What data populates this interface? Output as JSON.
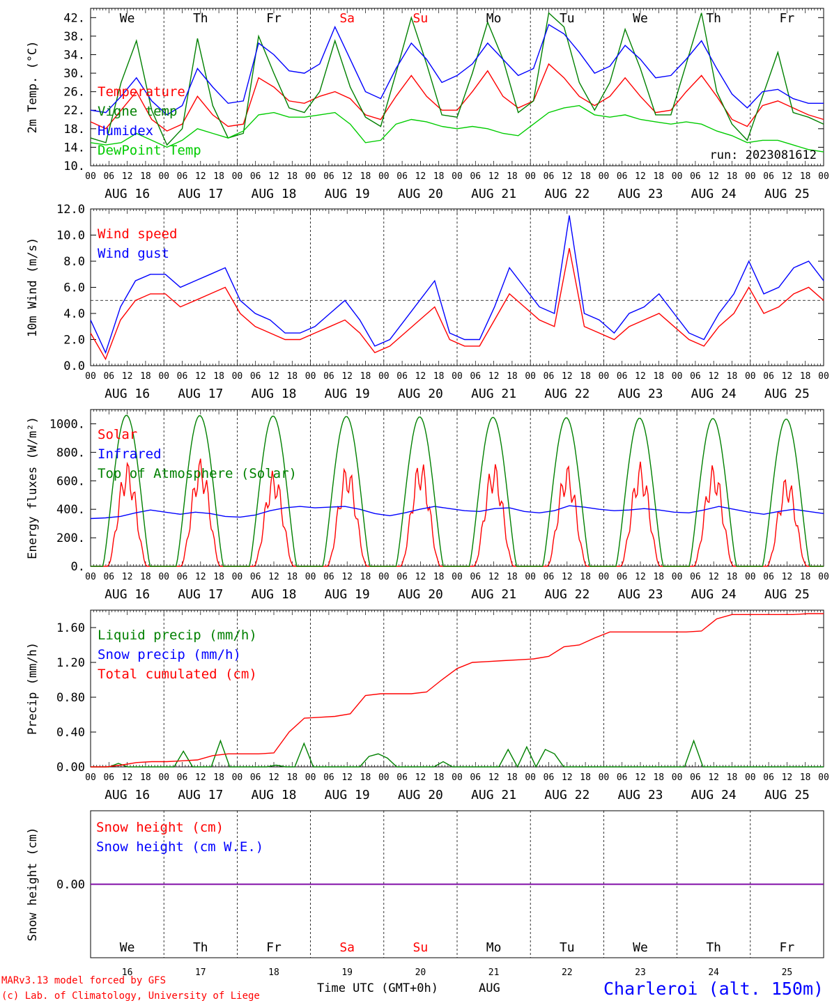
{
  "colors": {
    "red": "#ff0000",
    "green": "#008000",
    "blue": "#0000ff",
    "lime": "#00cc00",
    "purple": "#8000a0",
    "black": "#000000"
  },
  "x_axis": {
    "hour_labels": [
      "00",
      "06",
      "12",
      "18"
    ],
    "date_labels": [
      "AUG 16",
      "AUG 17",
      "AUG 18",
      "AUG 19",
      "AUG 20",
      "AUG 21",
      "AUG 22",
      "AUG 23",
      "AUG 24",
      "AUG 25"
    ],
    "weekdays": [
      {
        "label": "We",
        "weekend": false
      },
      {
        "label": "Th",
        "weekend": false
      },
      {
        "label": "Fr",
        "weekend": false
      },
      {
        "label": "Sa",
        "weekend": true
      },
      {
        "label": "Su",
        "weekend": true
      },
      {
        "label": "Mo",
        "weekend": false
      },
      {
        "label": "Tu",
        "weekend": false
      },
      {
        "label": "We",
        "weekend": false
      },
      {
        "label": "Th",
        "weekend": false
      },
      {
        "label": "Fr",
        "weekend": false
      }
    ],
    "day_numbers": [
      "16",
      "17",
      "18",
      "19",
      "20",
      "21",
      "22",
      "23",
      "24",
      "25"
    ],
    "title": "Time UTC (GMT+0h)",
    "month": "AUG"
  },
  "footer": {
    "model": "MARv3.13 model forced by GFS",
    "copyright": "(c) Lab. of Climatology, University of Liege",
    "station": "Charleroi (alt. 150m)"
  },
  "chart_data": [
    {
      "type": "line",
      "ylabel": "2m Temp. (°C)",
      "ylim": [
        10,
        44
      ],
      "yticks": [
        "42.",
        "38.",
        "34.",
        "30.",
        "26.",
        "22.",
        "18.",
        "14.",
        "10."
      ],
      "ytick_values": [
        42,
        38,
        34,
        30,
        26,
        22,
        18,
        14,
        10
      ],
      "annotation": "run: 2023081612",
      "series": [
        {
          "name": "Temperature",
          "color": "red",
          "values": [
            19.5,
            18.0,
            22.0,
            26.0,
            20.0,
            17.5,
            19.0,
            25.0,
            21.0,
            18.5,
            19.0,
            29.0,
            27.0,
            24.0,
            23.5,
            25.0,
            26.0,
            24.5,
            21.0,
            20.0,
            25.0,
            29.5,
            25.0,
            22.0,
            22.0,
            26.0,
            30.5,
            25.0,
            22.5,
            24.0,
            32.0,
            29.0,
            25.0,
            23.0,
            25.0,
            29.0,
            25.0,
            21.5,
            22.0,
            26.0,
            29.5,
            25.0,
            20.0,
            18.5,
            23.0,
            24.0,
            22.5,
            21.0,
            20.0
          ]
        },
        {
          "name": "Vigne temp",
          "color": "green",
          "values": [
            16.0,
            15.0,
            28.0,
            37.0,
            22.0,
            14.5,
            18.0,
            37.5,
            23.0,
            16.0,
            17.0,
            38.0,
            30.0,
            22.5,
            21.5,
            26.0,
            37.0,
            27.0,
            20.5,
            18.5,
            30.0,
            42.0,
            32.0,
            21.0,
            20.5,
            30.0,
            41.0,
            33.0,
            21.5,
            24.0,
            43.0,
            40.0,
            28.0,
            22.0,
            28.0,
            39.5,
            31.0,
            21.0,
            21.0,
            32.0,
            43.0,
            26.0,
            19.0,
            15.5,
            25.0,
            34.5,
            21.5,
            20.5,
            19.0
          ]
        },
        {
          "name": "Humidex",
          "color": "blue",
          "values": [
            22.0,
            21.5,
            25.0,
            29.0,
            24.0,
            21.0,
            23.0,
            31.0,
            27.0,
            23.5,
            24.0,
            36.5,
            34.0,
            30.5,
            30.0,
            32.0,
            40.0,
            33.0,
            26.0,
            24.5,
            31.0,
            36.5,
            33.0,
            28.0,
            29.5,
            32.0,
            36.5,
            33.0,
            29.5,
            31.0,
            40.5,
            38.5,
            34.5,
            30.0,
            31.5,
            36.0,
            33.0,
            29.0,
            29.5,
            33.0,
            37.0,
            31.0,
            25.5,
            22.5,
            26.0,
            26.5,
            24.5,
            23.5,
            23.5
          ]
        },
        {
          "name": "DewPoint Temp",
          "color": "lime",
          "values": [
            15.0,
            14.5,
            15.0,
            17.0,
            15.5,
            14.0,
            15.5,
            18.0,
            17.0,
            16.0,
            17.5,
            21.0,
            21.5,
            20.5,
            20.5,
            21.0,
            21.5,
            19.0,
            15.0,
            15.5,
            19.0,
            20.0,
            19.5,
            18.5,
            18.0,
            18.5,
            18.0,
            17.0,
            16.5,
            19.0,
            21.5,
            22.5,
            23.0,
            21.0,
            20.5,
            21.0,
            20.0,
            19.5,
            19.0,
            19.5,
            19.0,
            17.5,
            16.5,
            15.0,
            15.5,
            15.5,
            14.5,
            13.5,
            13.0
          ]
        }
      ]
    },
    {
      "type": "line",
      "ylabel": "10m Wind (m/s)",
      "ylim": [
        0,
        12
      ],
      "yticks": [
        "12.0",
        "10.0",
        "8.0",
        "6.0",
        "4.0",
        "2.0",
        "0.0"
      ],
      "ytick_values": [
        12,
        10,
        8,
        6,
        4,
        2,
        0
      ],
      "reference_line": 5,
      "series": [
        {
          "name": "Wind speed",
          "color": "red",
          "values": [
            2.5,
            0.5,
            3.5,
            5.0,
            5.5,
            5.5,
            4.5,
            5.0,
            5.5,
            6.0,
            4.0,
            3.0,
            2.5,
            2.0,
            2.0,
            2.5,
            3.0,
            3.5,
            2.5,
            1.0,
            1.5,
            2.5,
            3.5,
            4.5,
            2.0,
            1.5,
            1.5,
            3.5,
            5.5,
            4.5,
            3.5,
            3.0,
            9.0,
            3.0,
            2.5,
            2.0,
            3.0,
            3.5,
            4.0,
            3.0,
            2.0,
            1.5,
            3.0,
            4.0,
            6.0,
            4.0,
            4.5,
            5.5,
            6.0,
            5.0
          ]
        },
        {
          "name": "Wind gust",
          "color": "blue",
          "values": [
            3.5,
            1.0,
            4.5,
            6.5,
            7.0,
            7.0,
            6.0,
            6.5,
            7.0,
            7.5,
            5.0,
            4.0,
            3.5,
            2.5,
            2.5,
            3.0,
            4.0,
            5.0,
            3.5,
            1.5,
            2.0,
            3.5,
            5.0,
            6.5,
            2.5,
            2.0,
            2.0,
            4.5,
            7.5,
            6.0,
            4.5,
            4.0,
            11.5,
            4.0,
            3.5,
            2.5,
            4.0,
            4.5,
            5.5,
            4.0,
            2.5,
            2.0,
            4.0,
            5.5,
            8.0,
            5.5,
            6.0,
            7.5,
            8.0,
            6.5
          ]
        }
      ]
    },
    {
      "type": "line",
      "ylabel": "Energy fluxes (W/m²)",
      "ylim": [
        0,
        1100
      ],
      "yticks": [
        "1000.",
        "800.",
        "600.",
        "400.",
        "200.",
        "0."
      ],
      "ytick_values": [
        1000,
        800,
        600,
        400,
        200,
        0
      ],
      "series": [
        {
          "name": "Solar",
          "color": "red",
          "day_peaks": [
            740,
            765,
            680,
            720,
            755,
            740,
            720,
            735,
            720,
            640
          ]
        },
        {
          "name": "Infrared",
          "color": "blue",
          "values": [
            335,
            340,
            350,
            375,
            395,
            380,
            365,
            380,
            370,
            350,
            345,
            360,
            390,
            410,
            420,
            410,
            415,
            420,
            400,
            370,
            355,
            375,
            400,
            420,
            405,
            390,
            385,
            405,
            410,
            385,
            375,
            390,
            425,
            415,
            400,
            390,
            395,
            405,
            395,
            380,
            375,
            395,
            420,
            400,
            380,
            365,
            385,
            400,
            385,
            370
          ]
        },
        {
          "name": "Top of Atmosphere (Solar)",
          "color": "green",
          "day_peaks": [
            1060,
            1058,
            1055,
            1052,
            1049,
            1046,
            1043,
            1040,
            1037,
            1034
          ]
        }
      ]
    },
    {
      "type": "line",
      "ylabel": "Precip (mm/h)",
      "ylim": [
        0,
        1.8
      ],
      "yticks": [
        "1.60",
        "1.20",
        "0.80",
        "0.40",
        "0.00"
      ],
      "ytick_values": [
        1.6,
        1.2,
        0.8,
        0.4,
        0
      ],
      "series": [
        {
          "name": "Liquid precip (mm/h)",
          "color": "green",
          "values": [
            0,
            0,
            0,
            0.04,
            0,
            0,
            0,
            0,
            0,
            0,
            0.18,
            0,
            0,
            0,
            0.3,
            0,
            0,
            0,
            0,
            0,
            0.02,
            0,
            0,
            0.27,
            0,
            0,
            0,
            0,
            0,
            0,
            0.12,
            0.15,
            0.1,
            0,
            0,
            0,
            0,
            0,
            0.06,
            0,
            0,
            0,
            0,
            0,
            0,
            0.2,
            0,
            0.23,
            0,
            0.2,
            0.15,
            0,
            0,
            0,
            0,
            0,
            0,
            0,
            0,
            0,
            0,
            0,
            0,
            0,
            0,
            0.3,
            0,
            0,
            0,
            0,
            0,
            0,
            0,
            0,
            0,
            0,
            0,
            0,
            0,
            0
          ]
        },
        {
          "name": "Snow precip (mm/h)",
          "color": "blue",
          "values": []
        },
        {
          "name": "Total cumulated (cm)",
          "color": "red",
          "values": [
            0,
            0,
            0.02,
            0.05,
            0.06,
            0.06,
            0.07,
            0.08,
            0.13,
            0.15,
            0.15,
            0.15,
            0.16,
            0.4,
            0.56,
            0.57,
            0.58,
            0.61,
            0.82,
            0.84,
            0.84,
            0.84,
            0.86,
            1.0,
            1.13,
            1.2,
            1.21,
            1.22,
            1.23,
            1.24,
            1.27,
            1.38,
            1.4,
            1.48,
            1.55,
            1.55,
            1.55,
            1.55,
            1.55,
            1.55,
            1.56,
            1.7,
            1.75,
            1.75,
            1.75,
            1.75,
            1.75,
            1.76,
            1.76
          ]
        }
      ]
    },
    {
      "type": "line",
      "ylabel": "Snow height (cm)",
      "ylim": [
        -1,
        1
      ],
      "yticks": [
        "0.00"
      ],
      "ytick_values": [
        0
      ],
      "series": [
        {
          "name": "Snow height (cm)",
          "color": "red",
          "values": [
            0,
            0
          ]
        },
        {
          "name": "Snow height (cm W.E.)",
          "color": "blue",
          "values": [
            0,
            0
          ]
        }
      ]
    }
  ]
}
